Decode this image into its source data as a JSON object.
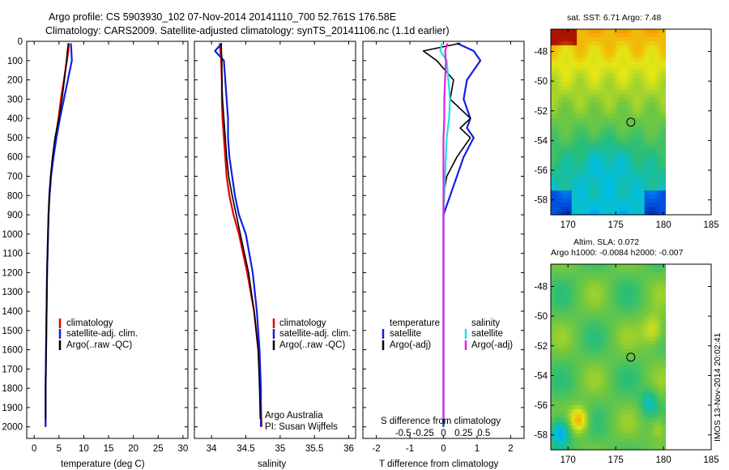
{
  "header": {
    "line1": "Argo profile: CS 5903930_102 07-Nov-2014 20141110_700 52.761S 176.58E",
    "line2": "Climatology: CARS2009. Satellite-adjusted climatology: synTS_20141106.nc (1.1d earlier)"
  },
  "y_axis": {
    "ticks": [
      0,
      100,
      200,
      300,
      400,
      500,
      600,
      700,
      800,
      900,
      1000,
      1100,
      1200,
      1300,
      1400,
      1500,
      1600,
      1700,
      1800,
      1900,
      2000
    ],
    "ylim": [
      0,
      2060
    ]
  },
  "colors": {
    "climatology": "#e00000",
    "satellite": "#1020e0",
    "argo": "#000000",
    "sal_satellite": "#20e0e0",
    "sal_argo": "#e020e0"
  },
  "chart_data": [
    {
      "type": "line",
      "id": "temperature",
      "xlabel": "temperature (deg C)",
      "xlim": [
        -1.5,
        31
      ],
      "xticks": [
        0,
        5,
        10,
        15,
        20,
        25,
        30
      ],
      "legend": [
        "climatology",
        "satellite-adj. clim.",
        "Argo(..raw -QC)"
      ],
      "series": [
        {
          "name": "climatology",
          "y": [
            10,
            50,
            100,
            200,
            300,
            400,
            500,
            600,
            700,
            800,
            900,
            1000,
            1200,
            1400,
            1600,
            1800,
            2000
          ],
          "x": [
            7.0,
            6.9,
            6.6,
            6.0,
            5.4,
            4.9,
            4.3,
            3.8,
            3.4,
            3.1,
            2.9,
            2.8,
            2.6,
            2.5,
            2.4,
            2.3,
            2.3
          ]
        },
        {
          "name": "satellite-adj. clim.",
          "y": [
            10,
            50,
            100,
            200,
            300,
            400,
            500,
            600,
            700,
            800,
            900,
            1000,
            1200,
            1400,
            1600,
            1800,
            2000
          ],
          "x": [
            7.4,
            7.5,
            7.6,
            6.8,
            6.0,
            5.2,
            4.5,
            3.9,
            3.4,
            3.1,
            2.9,
            2.8,
            2.6,
            2.5,
            2.4,
            2.3,
            2.3
          ]
        },
        {
          "name": "Argo(..raw -QC)",
          "y": [
            10,
            50,
            100,
            200,
            300,
            400,
            500,
            600,
            700,
            800,
            900,
            1000,
            1200,
            1400,
            1600,
            1800,
            1960
          ],
          "x": [
            6.9,
            6.7,
            6.5,
            6.1,
            5.6,
            5.0,
            4.2,
            3.7,
            3.3,
            3.0,
            2.9,
            2.8,
            2.6,
            2.5,
            2.4,
            2.3,
            2.3
          ]
        }
      ]
    },
    {
      "type": "line",
      "id": "salinity",
      "xlabel": "salinity",
      "xlim": [
        33.75,
        36.1
      ],
      "xticks": [
        34,
        34.5,
        35,
        35.5,
        36
      ],
      "legend": [
        "climatology",
        "satellite-adj. clim.",
        "Argo(..raw -QC)"
      ],
      "series": [
        {
          "name": "climatology",
          "y": [
            10,
            100,
            200,
            300,
            400,
            500,
            600,
            700,
            800,
            900,
            1000,
            1200,
            1400,
            1600,
            1800,
            2000
          ],
          "x": [
            34.12,
            34.14,
            34.15,
            34.15,
            34.16,
            34.18,
            34.2,
            34.22,
            34.26,
            34.32,
            34.4,
            34.52,
            34.62,
            34.68,
            34.71,
            34.73
          ]
        },
        {
          "name": "satellite-adj. clim.",
          "y": [
            10,
            50,
            100,
            200,
            300,
            400,
            500,
            600,
            700,
            800,
            900,
            1000,
            1200,
            1400,
            1600,
            1800,
            2000
          ],
          "x": [
            34.15,
            34.05,
            34.18,
            34.2,
            34.22,
            34.24,
            34.24,
            34.26,
            34.3,
            34.34,
            34.4,
            34.5,
            34.6,
            34.66,
            34.7,
            34.72,
            34.72
          ]
        },
        {
          "name": "Argo(..raw -QC)",
          "y": [
            10,
            100,
            200,
            300,
            400,
            500,
            600,
            700,
            800,
            900,
            1000,
            1200,
            1400,
            1600,
            1800,
            1960
          ],
          "x": [
            34.14,
            34.15,
            34.15,
            34.16,
            34.18,
            34.2,
            34.22,
            34.25,
            34.3,
            34.36,
            34.42,
            34.54,
            34.62,
            34.68,
            34.7,
            34.71
          ]
        }
      ],
      "annotation": [
        "Argo Australia",
        "PI: Susan Wijffels"
      ]
    },
    {
      "type": "line",
      "id": "differences",
      "xlabel": "T difference from climatology",
      "xlabel_top": "S difference from climatology",
      "xlim": [
        -2.4,
        2.4
      ],
      "xticks": [
        -2,
        -1,
        0,
        1,
        2
      ],
      "xticks_top": [
        -0.5,
        -0.25,
        0,
        0.25,
        0.5
      ],
      "legend_headers": [
        "temperature",
        "salinity"
      ],
      "legend_t": [
        "satellite",
        "Argo(-adj)"
      ],
      "legend_s": [
        "satellite",
        "Argo(-adj)"
      ],
      "series": [
        {
          "name": "T satellite",
          "y": [
            10,
            50,
            100,
            200,
            300,
            400,
            450,
            500,
            600,
            700,
            800,
            900,
            1000,
            1200,
            1400,
            1600,
            1800,
            2000
          ],
          "x": [
            0.4,
            0.9,
            1.1,
            0.7,
            0.6,
            0.8,
            0.7,
            0.9,
            0.6,
            0.4,
            0.2,
            0.0,
            0.0,
            0.0,
            0.0,
            0.0,
            0.0,
            0.0
          ]
        },
        {
          "name": "T Argo(-adj)",
          "y": [
            10,
            50,
            100,
            200,
            300,
            400,
            450,
            500,
            600,
            700,
            800,
            900,
            1000,
            1200,
            1400,
            1600,
            1800,
            1960
          ],
          "x": [
            0.5,
            -0.6,
            -0.2,
            0.3,
            0.2,
            0.8,
            0.5,
            0.8,
            0.4,
            0.1,
            0.0,
            0.0,
            0.0,
            0.0,
            0.0,
            0.0,
            0.0,
            0.0
          ]
        },
        {
          "name": "S satellite",
          "y": [
            10,
            50,
            100,
            200,
            300,
            400,
            500,
            600,
            700,
            800,
            900,
            1000,
            1200,
            1400,
            1600,
            1800,
            1900
          ],
          "x": [
            -0.02,
            -0.04,
            0.04,
            0.06,
            0.08,
            0.07,
            0.04,
            0.03,
            0.02,
            0.01,
            0.0,
            0.0,
            0.0,
            0.0,
            0.0,
            0.0,
            0.0
          ]
        },
        {
          "name": "S Argo(-adj)",
          "y": [
            10,
            50,
            100,
            200,
            300,
            400,
            500,
            600,
            700,
            800,
            900,
            1000,
            1200,
            1400,
            1600,
            1800,
            1960
          ],
          "x": [
            0.05,
            0.02,
            0.03,
            0.02,
            0.01,
            0.01,
            0.0,
            0.0,
            0.0,
            0.0,
            0.0,
            0.0,
            0.0,
            0.0,
            0.0,
            0.0,
            0.0
          ]
        }
      ]
    },
    {
      "type": "heatmap",
      "id": "sst_map",
      "title": "sat. SST: 6.71  Argo: 7.48",
      "xlim": [
        168.2,
        185
      ],
      "ylim": [
        -59,
        -46.5
      ],
      "xticks": [
        170,
        175,
        180,
        185
      ],
      "yticks": [
        -48,
        -50,
        -52,
        -54,
        -56,
        -58
      ],
      "data_xlim": [
        168.2,
        180.2
      ],
      "marker": {
        "lon": 176.58,
        "lat": -52.761
      }
    },
    {
      "type": "heatmap",
      "id": "sla_map",
      "title": "Altim. SLA: 0.072",
      "subtitle": "Argo h1000: -0.0084 h2000: -0.007",
      "xlim": [
        168.2,
        185
      ],
      "ylim": [
        -59,
        -46.5
      ],
      "xticks": [
        170,
        175,
        180,
        185
      ],
      "yticks": [
        -48,
        -50,
        -52,
        -54,
        -56,
        -58
      ],
      "data_xlim": [
        168.2,
        180.2
      ],
      "marker": {
        "lon": 176.58,
        "lat": -52.761
      }
    }
  ],
  "stamp": "IMOS 13-Nov-2014 20:02:41"
}
